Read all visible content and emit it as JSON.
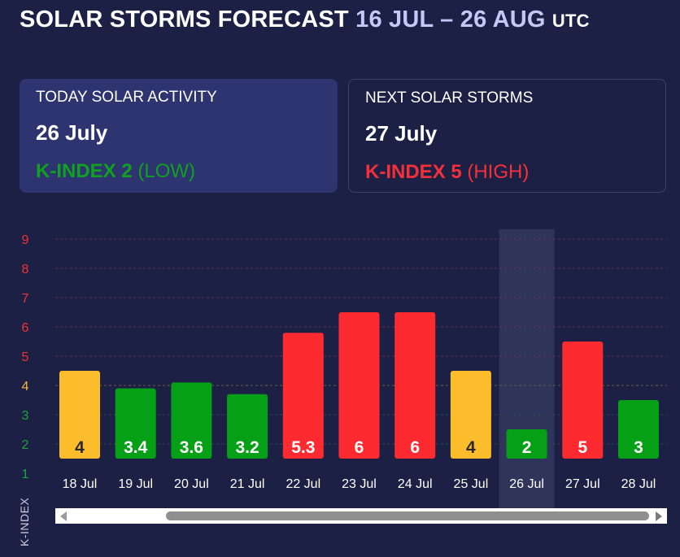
{
  "header": {
    "title": "SOLAR STORMS FORECAST",
    "range": "16 JUL – 26 AUG",
    "tz": "UTC"
  },
  "today": {
    "label": "TODAY SOLAR ACTIVITY",
    "date": "26 July",
    "kindex": "K-INDEX 2",
    "level": "(LOW)",
    "color": "#0fa11f"
  },
  "next": {
    "label": "NEXT SOLAR STORMS",
    "date": "27 July",
    "kindex": "K-INDEX 5",
    "level": "(HIGH)",
    "color": "#f4303a"
  },
  "chart_data": {
    "type": "bar",
    "categories": [
      "18 Jul",
      "19 Jul",
      "20 Jul",
      "21 Jul",
      "22 Jul",
      "23 Jul",
      "24 Jul",
      "25 Jul",
      "26 Jul",
      "27 Jul",
      "28 Jul"
    ],
    "values": [
      4,
      3.4,
      3.6,
      3.2,
      5.3,
      6,
      6,
      4,
      2,
      5,
      3
    ],
    "labels": [
      "4",
      "3.4",
      "3.6",
      "3.2",
      "5.3",
      "6",
      "6",
      "4",
      "2",
      "5",
      "3"
    ],
    "ylabel": "K-INDEX",
    "yticks": [
      1,
      2,
      3,
      4,
      5,
      6,
      7,
      8,
      9
    ],
    "ylim": [
      1,
      9
    ],
    "highlight_category": "26 Jul",
    "colors": {
      "low": "#06a016",
      "moderate": "#fbbd2b",
      "high": "#fd2b30",
      "tick_low": "#1da33a",
      "tick_moderate": "#f2b63c",
      "tick_high": "#f4303a"
    },
    "grid": true
  }
}
